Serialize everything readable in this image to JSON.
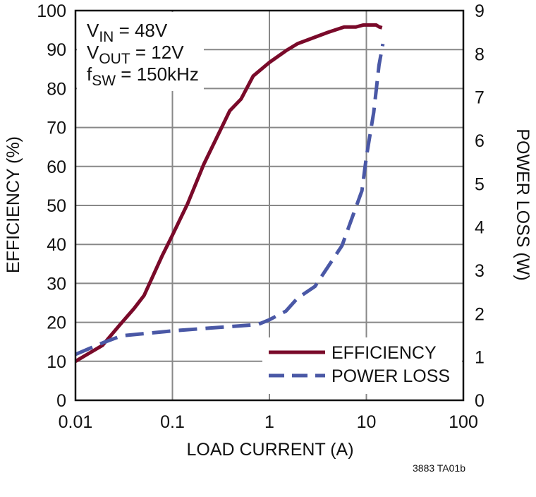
{
  "chart_data": {
    "type": "line",
    "xscale": "log",
    "xlim": [
      0.01,
      100
    ],
    "ylim": [
      0,
      100
    ],
    "y2lim": [
      0,
      9
    ],
    "grid": true,
    "xlabel": "LOAD CURRENT (A)",
    "ylabel": "EFFICIENCY (%)",
    "y2label": "POWER LOSS (W)",
    "xticks": [
      "0.01",
      "0.1",
      "1",
      "10",
      "100"
    ],
    "yticks": [
      "0",
      "10",
      "20",
      "30",
      "40",
      "50",
      "60",
      "70",
      "80",
      "90",
      "100"
    ],
    "y2ticks": [
      "0",
      "1",
      "2",
      "3",
      "4",
      "5",
      "6",
      "7",
      "8",
      "9"
    ],
    "legend_position": "bottom-right",
    "annotation": [
      {
        "main": "V",
        "sub": "IN",
        "rest": " = 48V"
      },
      {
        "main": "V",
        "sub": "OUT",
        "rest": " = 12V"
      },
      {
        "main": "f",
        "sub": "SW",
        "rest": " = 150kHz"
      }
    ],
    "series": [
      {
        "name": "EFFICIENCY",
        "axis": "left",
        "color": "#7a0a2a",
        "style": "solid",
        "x": [
          0.01,
          0.019,
          0.029,
          0.04,
          0.051,
          0.078,
          0.097,
          0.143,
          0.21,
          0.39,
          0.51,
          0.68,
          1.0,
          1.48,
          1.95,
          4.0,
          5.9,
          7.8,
          9.3,
          12.6,
          13.6,
          14.5
        ],
        "y": [
          10,
          14.1,
          19.5,
          23.5,
          26.9,
          37,
          41.7,
          50.4,
          60.5,
          74.3,
          77.3,
          83.2,
          86.7,
          89.7,
          91.5,
          94.4,
          95.8,
          95.8,
          96.3,
          96.3,
          95.8,
          95.6
        ]
      },
      {
        "name": "POWER LOSS",
        "axis": "right",
        "color": "#4a58a6",
        "style": "dashed",
        "x": [
          0.01,
          0.0193,
          0.03,
          0.108,
          0.76,
          1.0,
          1.48,
          1.95,
          2.95,
          5.6,
          9.0,
          10.0,
          11.9,
          13.5,
          14.8
        ],
        "y": [
          1.06,
          1.33,
          1.49,
          1.61,
          1.75,
          1.86,
          2.06,
          2.36,
          2.63,
          3.57,
          4.84,
          5.62,
          6.65,
          7.74,
          8.23
        ]
      }
    ]
  },
  "footer": "3883 TA01b"
}
